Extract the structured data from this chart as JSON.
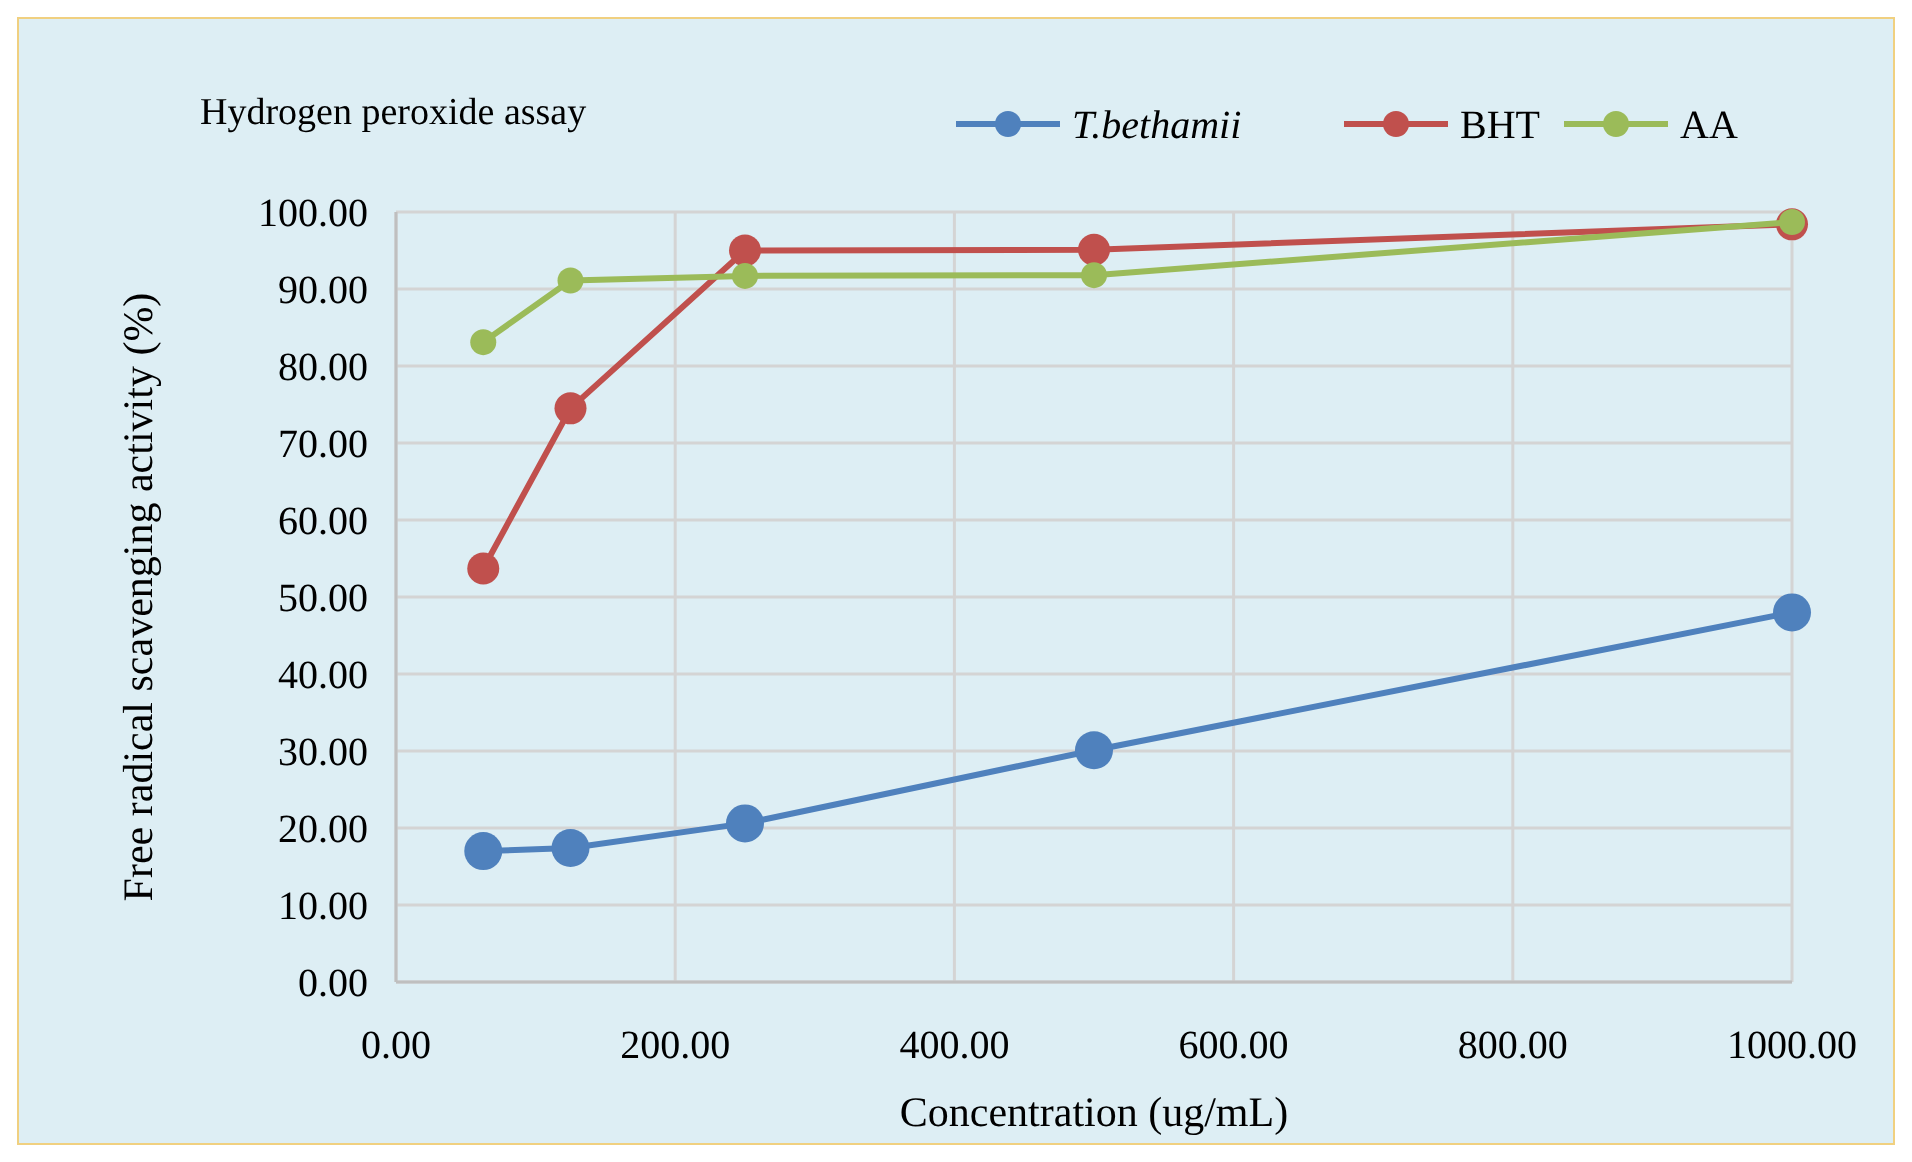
{
  "chart_data": {
    "type": "line",
    "title": "Hydrogen peroxide assay",
    "xlabel": "Concentration (ug/mL)",
    "ylabel": "Free radical scavenging activity (%)",
    "x": [
      62.5,
      125,
      250,
      500,
      1000
    ],
    "series": [
      {
        "name": "T.bethamii",
        "color": "#4f81bd",
        "values": [
          17.0,
          17.4,
          20.6,
          30.1,
          48.0
        ]
      },
      {
        "name": "BHT",
        "color": "#c0504d",
        "values": [
          53.7,
          74.5,
          95.0,
          95.1,
          98.4
        ]
      },
      {
        "name": "AA",
        "color": "#9bbb59",
        "values": [
          83.1,
          91.1,
          91.7,
          91.8,
          98.7
        ]
      }
    ],
    "xlim": [
      0,
      1000
    ],
    "xticks": [
      {
        "value": 0,
        "label": "0.00"
      },
      {
        "value": 200,
        "label": "200.00"
      },
      {
        "value": 400,
        "label": "400.00"
      },
      {
        "value": 600,
        "label": "600.00"
      },
      {
        "value": 800,
        "label": "800.00"
      },
      {
        "value": 1000,
        "label": "1000.00"
      }
    ],
    "ylim": [
      0,
      100
    ],
    "yticks": [
      {
        "value": 0,
        "label": "0.00"
      },
      {
        "value": 10,
        "label": "10.00"
      },
      {
        "value": 20,
        "label": "20.00"
      },
      {
        "value": 30,
        "label": "30.00"
      },
      {
        "value": 40,
        "label": "40.00"
      },
      {
        "value": 50,
        "label": "50.00"
      },
      {
        "value": 60,
        "label": "60.00"
      },
      {
        "value": 70,
        "label": "70.00"
      },
      {
        "value": 80,
        "label": "80.00"
      },
      {
        "value": 90,
        "label": "90.00"
      },
      {
        "value": 100,
        "label": "100.00"
      }
    ],
    "grid": true,
    "legend": "top right",
    "marker": "circle",
    "line_style": "solid"
  }
}
